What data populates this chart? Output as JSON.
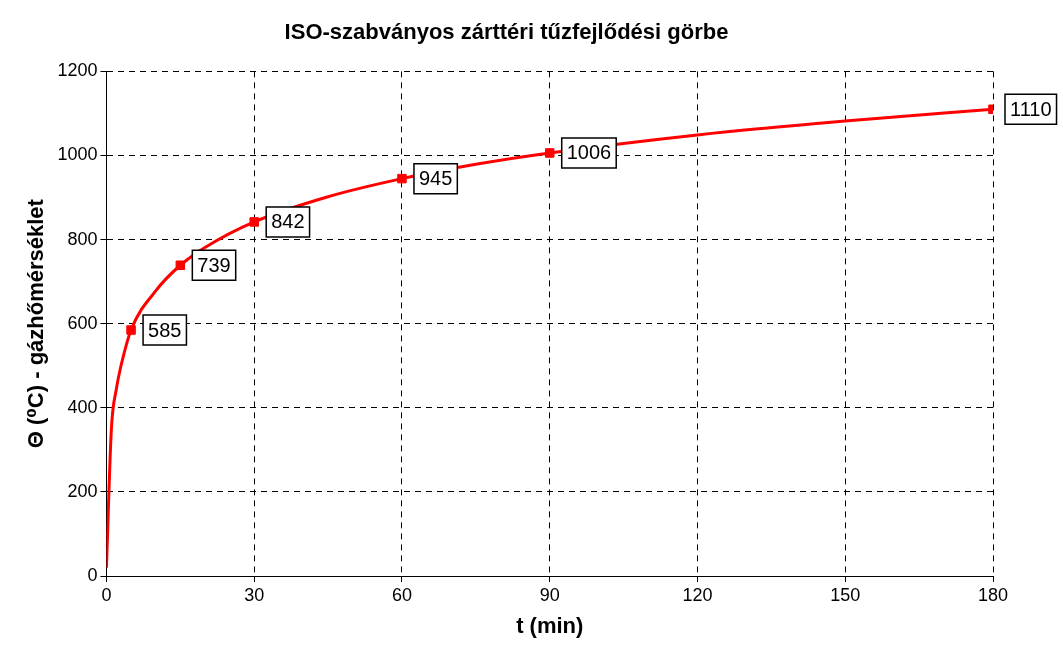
{
  "chart_data": {
    "type": "line",
    "title": "ISO-szabványos zárttéri tűzfejlődési görbe",
    "xlabel": "t (min)",
    "ylabel": "Θ (⁰C) - gázhőmérséklet",
    "xlim": [
      0,
      180
    ],
    "xticks": [
      0,
      30,
      60,
      90,
      120,
      150,
      180
    ],
    "ylim": [
      0,
      1200
    ],
    "yticks": [
      0,
      200,
      400,
      600,
      800,
      1000,
      1200
    ],
    "grid": true,
    "legend": false,
    "series": [
      {
        "color": "#ff0000",
        "marker": "none",
        "x": [
          0,
          1,
          2,
          3,
          5,
          10,
          15,
          20,
          30,
          45,
          60,
          75,
          90,
          120,
          150,
          180
        ],
        "values": [
          20,
          349,
          444,
          502,
          585,
          678,
          739,
          781,
          842,
          902,
          945,
          979,
          1006,
          1049,
          1082,
          1110
        ]
      },
      {
        "type": "scatter",
        "color": "#ff0000",
        "marker": "square",
        "x": [
          5,
          15,
          30,
          60,
          90,
          180
        ],
        "values": [
          585,
          739,
          842,
          945,
          1006,
          1110
        ],
        "value_labels": [
          "585",
          "739",
          "842",
          "945",
          "1006",
          "1110"
        ]
      }
    ]
  }
}
